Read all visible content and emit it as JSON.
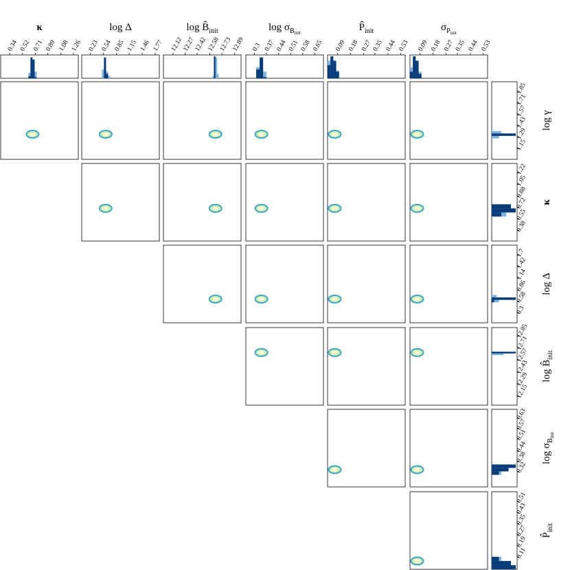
{
  "chart_data": {
    "type": "corner",
    "columns": [
      {
        "label": [
          "κ"
        ],
        "xlim": [
          0.21,
          1.33
        ],
        "xticks": [
          0.34,
          0.52,
          0.71,
          0.89,
          1.08,
          1.26
        ],
        "hist": {
          "bins": [
            0.61,
            0.64,
            0.67,
            0.7,
            0.73
          ],
          "ylim": [
            0,
            1
          ],
          "series": [
            {
              "color": "#7fb3dc",
              "counts": [
                0.25,
                0.8,
                0.7,
                0.3
              ]
            },
            {
              "color": "#0b3c7a",
              "counts": [
                0.1,
                0.95,
                0.85,
                0.05
              ]
            }
          ]
        }
      },
      {
        "label": [
          "log Δ"
        ],
        "xlim": [
          0.02,
          1.87
        ],
        "xticks": [
          0.23,
          0.54,
          0.85,
          1.15,
          1.46,
          1.77
        ],
        "hist": {
          "bins": [
            0.5,
            0.55,
            0.6,
            0.65,
            0.7
          ],
          "ylim": [
            0,
            1
          ],
          "series": [
            {
              "color": "#7fb3dc",
              "counts": [
                0.4,
                0.5,
                0.3,
                0.1
              ]
            },
            {
              "color": "#0b3c7a",
              "counts": [
                0,
                0.95,
                0.2,
                0
              ]
            }
          ]
        }
      },
      {
        "label": [
          "log B̂",
          "init"
        ],
        "xlim": [
          12.0,
          12.97
        ],
        "xticks": [
          12.12,
          12.27,
          12.42,
          12.58,
          12.73,
          12.89
        ],
        "hist": {
          "bins": [
            12.61,
            12.63,
            12.65,
            12.67,
            12.69
          ],
          "ylim": [
            0,
            1
          ],
          "series": [
            {
              "color": "#7fb3dc",
              "counts": [
                0.1,
                0.3,
                0.95,
                0.2
              ]
            },
            {
              "color": "#0b3c7a",
              "counts": [
                0,
                1.0,
                0,
                0
              ]
            }
          ]
        }
      },
      {
        "label": [
          "log σ",
          "B",
          "init"
        ],
        "xlim": [
          0.25,
          0.7
        ],
        "xticks": [
          0.3,
          0.37,
          0.44,
          0.51,
          0.58,
          0.65
        ],
        "hist": {
          "bins": [
            0.31,
            0.33,
            0.35,
            0.37,
            0.39
          ],
          "ylim": [
            0,
            1
          ],
          "series": [
            {
              "color": "#7fb3dc",
              "counts": [
                0.5,
                0.5,
                0.3,
                0
              ]
            },
            {
              "color": "#0b3c7a",
              "counts": [
                0.4,
                0.95,
                0.05,
                0
              ]
            }
          ]
        }
      },
      {
        "label": [
          "P̂",
          "init"
        ],
        "xlim": [
          0.02,
          0.56
        ],
        "xticks": [
          0.09,
          0.18,
          0.27,
          0.35,
          0.44,
          0.53
        ],
        "hist": {
          "bins": [
            0.02,
            0.04,
            0.06,
            0.08,
            0.1
          ],
          "ylim": [
            0,
            1
          ],
          "series": [
            {
              "color": "#7fb3dc",
              "counts": [
                0.8,
                0.9,
                0.6,
                0.35
              ]
            },
            {
              "color": "#0b3c7a",
              "counts": [
                0.6,
                1.0,
                0.8,
                0.3
              ]
            }
          ]
        }
      },
      {
        "label": [
          "σ",
          "P",
          "init"
        ],
        "xlim": [
          0.02,
          0.56
        ],
        "xticks": [
          0.09,
          0.18,
          0.27,
          0.35,
          0.44,
          0.53
        ],
        "hist": {
          "bins": [
            0.02,
            0.04,
            0.06,
            0.08,
            0.1
          ],
          "ylim": [
            0,
            1
          ],
          "series": [
            {
              "color": "#7fb3dc",
              "counts": [
                0.5,
                0.9,
                0.7,
                0.3
              ]
            },
            {
              "color": "#0b3c7a",
              "counts": [
                0.3,
                1.0,
                0.8,
                0.2
              ]
            }
          ]
        }
      }
    ],
    "rows": [
      {
        "label": [
          "log γ"
        ],
        "ylim": [
          1.02,
          1.98
        ],
        "yticks": [
          1.85,
          1.71,
          1.57,
          1.43,
          1.29,
          1.15
        ],
        "blob_x": [
          0.67,
          0.59,
          12.65,
          0.34,
          0.07,
          0.07
        ],
        "blob_y": [
          1.33,
          1.33,
          1.33,
          1.33,
          1.33,
          1.33
        ],
        "hist": {
          "bins": [
            1.28,
            1.31,
            1.34,
            1.37
          ],
          "xlim": [
            0,
            1
          ],
          "series": [
            {
              "color": "#7fb3dc",
              "counts": [
                0.3,
                0.5,
                0.4
              ]
            },
            {
              "color": "#0b3c7a",
              "counts": [
                0,
                1.0,
                0
              ]
            }
          ]
        }
      },
      {
        "label": [
          "κ"
        ],
        "ylim": [
          0.22,
          1.36
        ],
        "yticks": [
          1.22,
          1.05,
          0.88,
          0.72,
          0.55,
          0.38
        ],
        "blob_x": [
          null,
          0.59,
          12.65,
          0.34,
          0.07,
          0.07
        ],
        "blob_y": [
          null,
          0.7,
          0.7,
          0.7,
          0.7,
          0.7
        ],
        "hist": {
          "bins": [
            0.58,
            0.64,
            0.7,
            0.76
          ],
          "xlim": [
            0,
            1
          ],
          "series": [
            {
              "color": "#7fb3dc",
              "counts": [
                0.6,
                0.9,
                0.5
              ]
            },
            {
              "color": "#0b3c7a",
              "counts": [
                0.4,
                1.0,
                0.8
              ]
            }
          ]
        }
      },
      {
        "label": [
          "log Δ"
        ],
        "ylim": [
          0.05,
          1.95
        ],
        "yticks": [
          1.7,
          1.42,
          1.14,
          0.86,
          0.58,
          0.3
        ],
        "blob_x": [
          null,
          null,
          12.65,
          0.34,
          0.07,
          0.07
        ],
        "blob_y": [
          null,
          null,
          0.63,
          0.63,
          0.63,
          0.63
        ],
        "hist": {
          "bins": [
            0.55,
            0.61,
            0.67,
            0.73
          ],
          "xlim": [
            0,
            1
          ],
          "series": [
            {
              "color": "#7fb3dc",
              "counts": [
                0.3,
                0.5,
                0.2
              ]
            },
            {
              "color": "#0b3c7a",
              "counts": [
                0.1,
                1.0,
                0
              ]
            }
          ]
        }
      },
      {
        "label": [
          "log B̂",
          "init"
        ],
        "ylim": [
          12.05,
          12.95
        ],
        "yticks": [
          12.85,
          12.71,
          12.57,
          12.43,
          12.29,
          12.15
        ],
        "blob_x": [
          null,
          null,
          null,
          0.34,
          0.07,
          0.07
        ],
        "blob_y": [
          null,
          null,
          null,
          12.66,
          12.66,
          12.66
        ],
        "hist": {
          "bins": [
            12.63,
            12.65,
            12.67,
            12.69
          ],
          "xlim": [
            0,
            1
          ],
          "series": [
            {
              "color": "#7fb3dc",
              "counts": [
                0.5,
                0.2,
                0
              ]
            },
            {
              "color": "#0b3c7a",
              "counts": [
                0,
                1.0,
                0
              ]
            }
          ]
        }
      },
      {
        "label": [
          "log σ",
          "B",
          "init"
        ],
        "ylim": [
          0.23,
          0.68
        ],
        "yticks": [
          0.63,
          0.57,
          0.51,
          0.44,
          0.38,
          0.32
        ],
        "blob_x": [
          null,
          null,
          null,
          null,
          0.07,
          0.07
        ],
        "blob_y": [
          null,
          null,
          null,
          null,
          0.33,
          0.33
        ],
        "hist": {
          "bins": [
            0.3,
            0.32,
            0.34,
            0.36
          ],
          "xlim": [
            0,
            1
          ],
          "series": [
            {
              "color": "#7fb3dc",
              "counts": [
                0.4,
                0.6,
                0.3
              ]
            },
            {
              "color": "#0b3c7a",
              "counts": [
                0.3,
                0.7,
                1.0
              ]
            }
          ]
        }
      },
      {
        "label": [
          "P̂",
          "init"
        ],
        "ylim": [
          0.02,
          0.58
        ],
        "yticks": [
          0.51,
          0.43,
          0.35,
          0.27,
          0.19,
          0.11
        ],
        "blob_x": [
          null,
          null,
          null,
          null,
          null,
          0.07
        ],
        "blob_y": [
          null,
          null,
          null,
          null,
          null,
          0.08
        ],
        "hist": {
          "bins": [
            0.02,
            0.05,
            0.08,
            0.11
          ],
          "xlim": [
            0,
            1
          ],
          "series": [
            {
              "color": "#7fb3dc",
              "counts": [
                0.5,
                0.8,
                0.4
              ]
            },
            {
              "color": "#0b3c7a",
              "counts": [
                1.0,
                0.8,
                0.3
              ]
            }
          ]
        }
      }
    ]
  }
}
